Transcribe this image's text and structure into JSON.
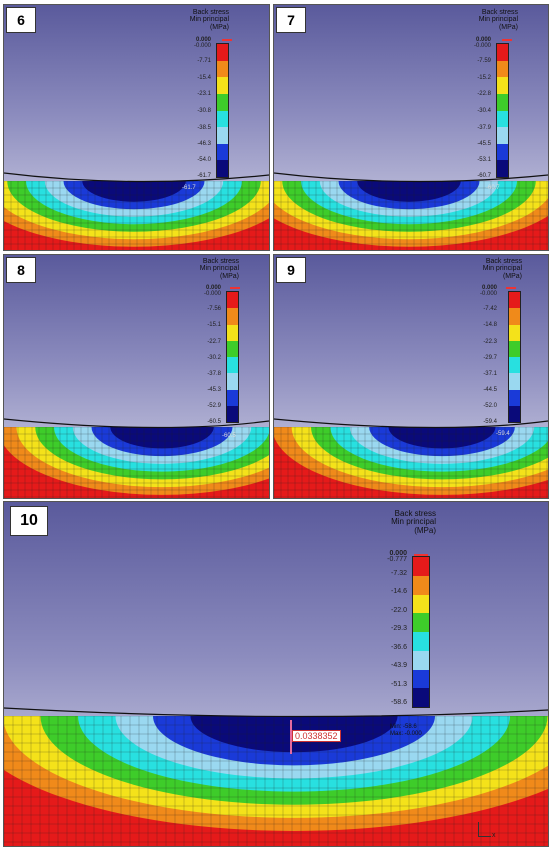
{
  "panels": [
    {
      "label": "6",
      "legend_title": [
        "Back stress",
        "Min principal",
        "(MPa)"
      ],
      "top_value": "0.000",
      "top_value2": "-0.000",
      "ticks": [
        "-7.71",
        "-15.4",
        "-23.1",
        "-30.8",
        "-38.5",
        "-46.3",
        "-54.0",
        "-61.7"
      ],
      "min_label": "-61.7"
    },
    {
      "label": "7",
      "legend_title": [
        "Back stress",
        "Min principal",
        "(MPa)"
      ],
      "top_value": "0.000",
      "top_value2": "-0.000",
      "ticks": [
        "-7.59",
        "-15.2",
        "-22.8",
        "-30.4",
        "-37.9",
        "-45.5",
        "-53.1",
        "-60.7"
      ],
      "min_label": "-60.7"
    },
    {
      "label": "8",
      "legend_title": [
        "Back stress",
        "Min principal",
        "(MPa)"
      ],
      "top_value": "0.000",
      "top_value2": "-0.000",
      "ticks": [
        "-7.56",
        "-15.1",
        "-22.7",
        "-30.2",
        "-37.8",
        "-45.3",
        "-52.9",
        "-60.5"
      ],
      "min_label": "-60.5"
    },
    {
      "label": "9",
      "legend_title": [
        "Back stress",
        "Min principal",
        "(MPa)"
      ],
      "top_value": "0.000",
      "top_value2": "-0.000",
      "ticks": [
        "-7.42",
        "-14.8",
        "-22.3",
        "-29.7",
        "-37.1",
        "-44.5",
        "-52.0",
        "-59.4"
      ],
      "min_label": "-59.4"
    },
    {
      "label": "10",
      "legend_title": [
        "Back stress",
        "Min principal",
        "(MPa)"
      ],
      "top_value": "0.000",
      "top_value2": "-0.777",
      "ticks": [
        "-7.32",
        "-14.6",
        "-22.0",
        "-29.3",
        "-36.6",
        "-43.9",
        "-51.3",
        "-58.6"
      ],
      "min_label": "Min: -58.6",
      "max_label": "Max: -0.000",
      "path_value": "0.0338352",
      "axis": "x"
    }
  ],
  "colors": {
    "bands": [
      "#e51a1a",
      "#f08a1a",
      "#f4e21a",
      "#3ecc2a",
      "#28e0e0",
      "#9ad8f0",
      "#1a3ad8",
      "#0a0a7a"
    ]
  }
}
